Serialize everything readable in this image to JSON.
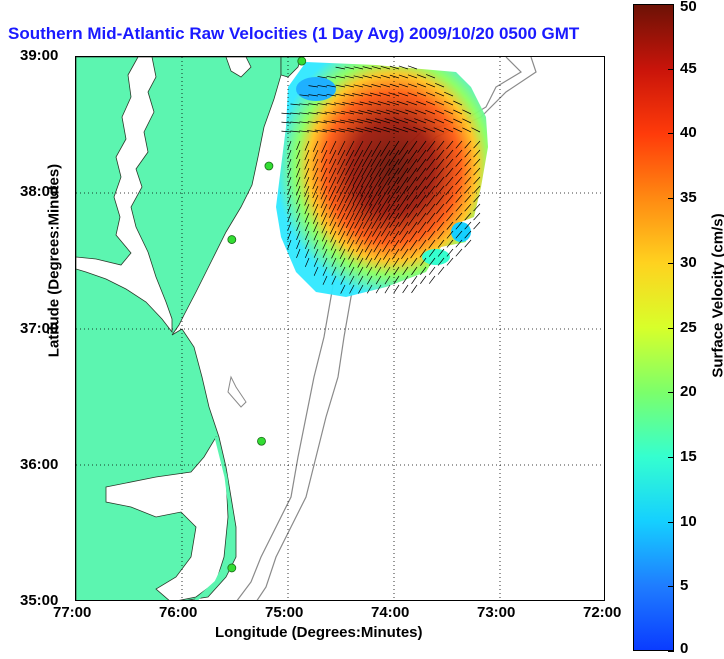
{
  "title": "Southern Mid-Atlantic Raw Velocities (1 Day Avg) 2009/10/20 0500 GMT",
  "axes": {
    "xlabel": "Longitude (Degrees:Minutes)",
    "ylabel": "Latitude (Degrees:Minutes)",
    "x_ticks": [
      "77:00",
      "76:00",
      "75:00",
      "74:00",
      "73:00",
      "72:00"
    ],
    "y_ticks": [
      "39:00",
      "38:00",
      "37:00",
      "36:00",
      "35:00"
    ]
  },
  "colorbar": {
    "label": "Surface Velocity (cm/s)",
    "ticks": [
      "50",
      "45",
      "40",
      "35",
      "30",
      "25",
      "20",
      "15",
      "10",
      "5",
      "0"
    ],
    "min": 0,
    "max": 50
  },
  "colors": {
    "land": "#5cf5b0",
    "coast": "#2a3a2a",
    "bathymetry": "#8a8a8a",
    "grid": "#000000",
    "station": "#33dd33"
  },
  "chart_data": {
    "type": "heatmap",
    "title": "Southern Mid-Atlantic Raw Velocities (1 Day Avg) 2009/10/20 0500 GMT",
    "xlabel": "Longitude (Degrees:Minutes)",
    "ylabel": "Latitude (Degrees:Minutes)",
    "xlim": [
      -77,
      -72
    ],
    "ylim": [
      35,
      39
    ],
    "stations": [
      {
        "lon": -74.87,
        "lat": 38.97
      },
      {
        "lon": -75.18,
        "lat": 38.2
      },
      {
        "lon": -75.53,
        "lat": 37.66
      },
      {
        "lon": -75.25,
        "lat": 36.18
      },
      {
        "lon": -75.53,
        "lat": 35.25
      }
    ]
  }
}
